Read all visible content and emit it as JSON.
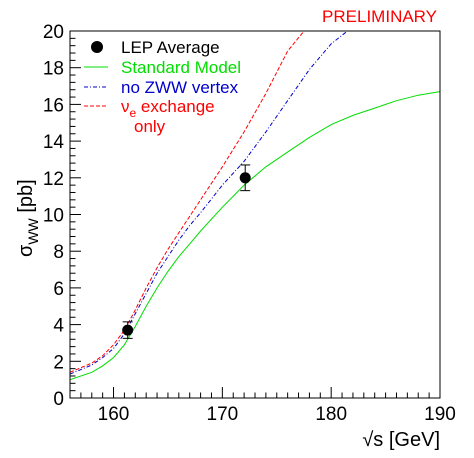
{
  "chart_data": {
    "type": "line",
    "annotation": "PRELIMINARY",
    "xlabel": "√s [GeV]",
    "ylabel": {
      "main": "σ",
      "sub": "WW",
      "unit": " [pb]"
    },
    "xlim": [
      156,
      190
    ],
    "ylim": [
      0,
      20
    ],
    "x_ticks": [
      160,
      170,
      180,
      190
    ],
    "y_ticks": [
      0,
      2,
      4,
      6,
      8,
      10,
      12,
      14,
      16,
      18,
      20
    ],
    "grid": false,
    "legend_position": "top-left",
    "colors": {
      "sm": "#00dd00",
      "nozww": "#0000cc",
      "nue": "#ff0000",
      "points": "#000000",
      "prelim": "#ff0000"
    },
    "points": {
      "name": "LEP Average",
      "x": [
        161.3,
        172.1
      ],
      "y": [
        3.7,
        12.0
      ],
      "err": [
        0.45,
        0.7
      ]
    },
    "series": [
      {
        "name": "Standard Model",
        "key": "sm",
        "style": "solid",
        "x": [
          156,
          158,
          159,
          160,
          161,
          162,
          163,
          164,
          165,
          166,
          167,
          168,
          170,
          172,
          174,
          176,
          178,
          180,
          182,
          184,
          186,
          188,
          190
        ],
        "y": [
          1.0,
          1.4,
          1.75,
          2.2,
          2.9,
          3.9,
          5.0,
          6.0,
          6.9,
          7.7,
          8.4,
          9.1,
          10.4,
          11.6,
          12.6,
          13.4,
          14.2,
          14.9,
          15.4,
          15.8,
          16.2,
          16.5,
          16.7
        ]
      },
      {
        "name": "no ZWW vertex",
        "key": "nozww",
        "style": "dashdot",
        "x": [
          156,
          158,
          159,
          160,
          161,
          162,
          163,
          164,
          165,
          166,
          167,
          168,
          170,
          172,
          174,
          176,
          178,
          180,
          181.5
        ],
        "y": [
          1.3,
          1.8,
          2.2,
          2.7,
          3.5,
          4.6,
          5.7,
          6.8,
          7.7,
          8.6,
          9.4,
          10.1,
          11.6,
          12.9,
          14.5,
          16.2,
          17.9,
          19.3,
          20.0
        ]
      },
      {
        "name": "ν",
        "sub": "e",
        "suffix": " exchange",
        "line2": "only",
        "key": "nue",
        "style": "dashed",
        "x": [
          156,
          158,
          159,
          160,
          161,
          162,
          163,
          164,
          165,
          166,
          167,
          168,
          170,
          172,
          174,
          176,
          177.5
        ],
        "y": [
          1.4,
          1.9,
          2.3,
          2.9,
          3.7,
          4.8,
          6.0,
          7.1,
          8.1,
          9.0,
          9.9,
          10.8,
          12.6,
          14.5,
          16.6,
          18.9,
          20.0
        ]
      }
    ]
  }
}
